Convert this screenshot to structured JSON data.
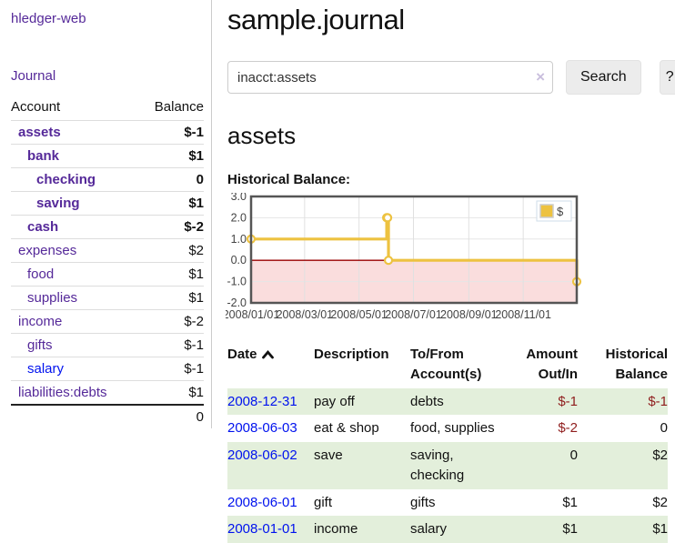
{
  "app": {
    "brand": "hledger-web",
    "nav_journal": "Journal"
  },
  "page": {
    "title": "sample.journal",
    "account_heading": "assets",
    "chart_label": "Historical Balance:"
  },
  "search": {
    "value": "inacct:assets",
    "clear_icon": "×",
    "search_label": "Search",
    "help_label": "?"
  },
  "icons": {
    "sort_asc": "chevron-up",
    "clear_search": "x-mark"
  },
  "colors": {
    "accent_purple": "#552999",
    "link_blue": "#0012ee",
    "negative_strong": "#a40000",
    "negative_muted": "#b86f6f",
    "table_negative": "#8f1d1d",
    "row_shaded_green": "#e3efdb",
    "series_gold": "#edc240",
    "zero_line_red": "#990000",
    "negative_region_pink": "#fadddd"
  },
  "sidebar_accounts": {
    "headers": {
      "account": "Account",
      "balance": "Balance"
    },
    "rows": [
      {
        "name": "assets",
        "balance": "$-1",
        "indent": 1,
        "bold": true,
        "name_style": "purple",
        "balance_style": "neg-strong"
      },
      {
        "name": "bank",
        "balance": "$1",
        "indent": 2,
        "bold": true,
        "name_style": "purple",
        "balance_style": "normal"
      },
      {
        "name": "checking",
        "balance": "0",
        "indent": 3,
        "bold": true,
        "name_style": "purple",
        "balance_style": "normal"
      },
      {
        "name": "saving",
        "balance": "$1",
        "indent": 3,
        "bold": true,
        "name_style": "purple",
        "balance_style": "normal"
      },
      {
        "name": "cash",
        "balance": "$-2",
        "indent": 2,
        "bold": true,
        "name_style": "purple",
        "balance_style": "neg-strong"
      },
      {
        "name": "expenses",
        "balance": "$2",
        "indent": 1,
        "bold": false,
        "name_style": "purple",
        "balance_style": "normal"
      },
      {
        "name": "food",
        "balance": "$1",
        "indent": 2,
        "bold": false,
        "name_style": "purple",
        "balance_style": "normal"
      },
      {
        "name": "supplies",
        "balance": "$1",
        "indent": 2,
        "bold": false,
        "name_style": "purple",
        "balance_style": "normal"
      },
      {
        "name": "income",
        "balance": "$-2",
        "indent": 1,
        "bold": false,
        "name_style": "purple",
        "balance_style": "neg-muted"
      },
      {
        "name": "gifts",
        "balance": "$-1",
        "indent": 2,
        "bold": false,
        "name_style": "purple",
        "balance_style": "neg-muted"
      },
      {
        "name": "salary",
        "balance": "$-1",
        "indent": 2,
        "bold": false,
        "name_style": "blue",
        "balance_style": "neg-muted"
      },
      {
        "name": "liabilities:debts",
        "balance": "$1",
        "indent": 1,
        "bold": false,
        "name_style": "purple",
        "balance_style": "normal"
      }
    ],
    "total": "0"
  },
  "chart_data": {
    "type": "line",
    "step": true,
    "title": "Historical Balance:",
    "legend": {
      "label": "$",
      "position": "top-right"
    },
    "grid": true,
    "xlim": [
      "2008-01-01",
      "2008-12-31"
    ],
    "ylim": [
      -2,
      3
    ],
    "y_ticks": [
      3.0,
      2.0,
      1.0,
      0.0,
      -1.0,
      -2.0
    ],
    "x_ticks": [
      {
        "label": "2008/01/01",
        "date": "2008-01-01"
      },
      {
        "label": "2008/03/01",
        "date": "2008-03-01"
      },
      {
        "label": "2008/05/01",
        "date": "2008-05-01"
      },
      {
        "label": "2008/07/01",
        "date": "2008-07-01"
      },
      {
        "label": "2008/09/01",
        "date": "2008-09-01"
      },
      {
        "label": "2008/11/01",
        "date": "2008-11-01"
      }
    ],
    "series": [
      {
        "name": "$",
        "color": "#edc240",
        "points": [
          {
            "x": "2008-01-01",
            "y": 1
          },
          {
            "x": "2008-06-01",
            "y": 2
          },
          {
            "x": "2008-06-02",
            "y": 2
          },
          {
            "x": "2008-06-03",
            "y": 0
          },
          {
            "x": "2008-12-31",
            "y": -1
          }
        ]
      }
    ]
  },
  "register": {
    "columns": [
      "Date",
      "Description",
      "To/From Account(s)",
      "Amount Out/In",
      "Historical Balance"
    ],
    "sort": {
      "column": "Date",
      "direction": "asc"
    },
    "rows": [
      {
        "date": "2008-12-31",
        "description": "pay off",
        "accounts": "debts",
        "amount": "$-1",
        "balance": "$-1"
      },
      {
        "date": "2008-06-03",
        "description": "eat & shop",
        "accounts": "food, supplies",
        "amount": "$-2",
        "balance": "0"
      },
      {
        "date": "2008-06-02",
        "description": "save",
        "accounts": "saving, checking",
        "amount": "0",
        "balance": "$2"
      },
      {
        "date": "2008-06-01",
        "description": "gift",
        "accounts": "gifts",
        "amount": "$1",
        "balance": "$2"
      },
      {
        "date": "2008-01-01",
        "description": "income",
        "accounts": "salary",
        "amount": "$1",
        "balance": "$1"
      }
    ]
  }
}
